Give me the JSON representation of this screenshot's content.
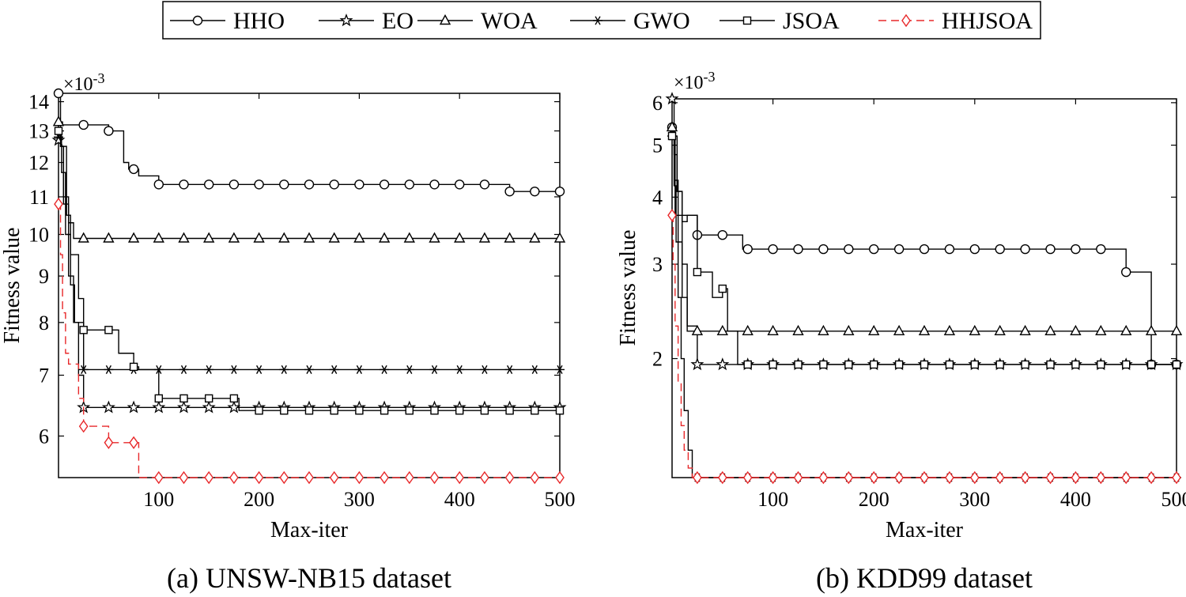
{
  "legend": {
    "placement": "top-center",
    "entries": [
      {
        "label": "HHO",
        "marker": "circle",
        "color": "#000000",
        "dash": "solid"
      },
      {
        "label": "EO",
        "marker": "star",
        "color": "#000000",
        "dash": "solid"
      },
      {
        "label": "WOA",
        "marker": "triangle",
        "color": "#000000",
        "dash": "solid"
      },
      {
        "label": "GWO",
        "marker": "asterisk",
        "color": "#000000",
        "dash": "solid"
      },
      {
        "label": "JSOA",
        "marker": "square",
        "color": "#000000",
        "dash": "solid"
      },
      {
        "label": "HHJSOA",
        "marker": "diamond",
        "color": "#e8282a",
        "dash": "dashed"
      }
    ]
  },
  "chart_data": [
    {
      "type": "line",
      "step": true,
      "yscale": "log",
      "caption": "(a) UNSW-NB15 dataset",
      "xlabel": "Max-iter",
      "ylabel": "Fitness value",
      "exponent": "×10-3",
      "xlim": [
        0,
        500
      ],
      "ylim": [
        5.4,
        14.3
      ],
      "xticks": [
        100,
        200,
        300,
        400,
        500
      ],
      "yticks": [
        6,
        7,
        8,
        9,
        10,
        11,
        12,
        13,
        14
      ],
      "marker_x": [
        0,
        25,
        50,
        75,
        100,
        125,
        150,
        175,
        200,
        225,
        250,
        275,
        300,
        325,
        350,
        375,
        400,
        425,
        450,
        475,
        500
      ],
      "series": [
        {
          "name": "HHO",
          "x": [
            0,
            2,
            4,
            50,
            65,
            70,
            80,
            100,
            450,
            500
          ],
          "y": [
            14.3,
            13.3,
            13.2,
            13.0,
            12.0,
            11.8,
            11.6,
            11.35,
            11.15,
            11.15
          ]
        },
        {
          "name": "EO",
          "x": [
            0,
            2,
            5,
            10,
            15,
            20,
            25,
            500
          ],
          "y": [
            12.7,
            12.5,
            10.8,
            9.0,
            8.0,
            7.0,
            6.45,
            6.45
          ]
        },
        {
          "name": "WOA",
          "x": [
            0,
            2,
            5,
            10,
            15,
            500
          ],
          "y": [
            13.3,
            12.5,
            11.0,
            10.3,
            9.9,
            9.9
          ]
        },
        {
          "name": "GWO",
          "x": [
            0,
            3,
            7,
            12,
            16,
            25,
            500
          ],
          "y": [
            12.8,
            11.7,
            10.0,
            8.8,
            8.0,
            7.1,
            7.1
          ]
        },
        {
          "name": "JSOA",
          "x": [
            0,
            3,
            8,
            12,
            20,
            25,
            60,
            75,
            80,
            100,
            180,
            500
          ],
          "y": [
            13.0,
            12.5,
            10.5,
            9.5,
            8.5,
            7.85,
            7.4,
            7.15,
            7.1,
            6.6,
            6.4,
            6.4
          ]
        },
        {
          "name": "HHJSOA",
          "x": [
            0,
            2,
            4,
            7,
            10,
            20,
            25,
            30,
            50,
            80,
            500
          ],
          "y": [
            10.8,
            9.5,
            8.2,
            7.4,
            7.2,
            6.6,
            6.15,
            6.15,
            5.9,
            5.4,
            5.4
          ]
        }
      ]
    },
    {
      "type": "line",
      "step": true,
      "yscale": "log",
      "caption": "(b) KDD99 dataset",
      "xlabel": "Max-iter",
      "ylabel": "Fitness value",
      "exponent": "×10-3",
      "xlim": [
        0,
        500
      ],
      "ylim": [
        1.2,
        6.1
      ],
      "xticks": [
        100,
        200,
        300,
        400,
        500
      ],
      "yticks": [
        2,
        3,
        4,
        5,
        6
      ],
      "marker_x": [
        0,
        25,
        50,
        75,
        100,
        125,
        150,
        175,
        200,
        225,
        250,
        275,
        300,
        325,
        350,
        375,
        400,
        425,
        450,
        475,
        500
      ],
      "series": [
        {
          "name": "HHO",
          "x": [
            0,
            2,
            5,
            10,
            15,
            25,
            50,
            70,
            425,
            450,
            475,
            500
          ],
          "y": [
            5.4,
            4.8,
            4.1,
            3.6,
            3.7,
            3.4,
            3.4,
            3.2,
            3.2,
            2.9,
            1.95,
            1.95
          ]
        },
        {
          "name": "EO",
          "x": [
            0,
            2,
            5,
            10,
            15,
            25,
            500
          ],
          "y": [
            6.1,
            5.2,
            4.1,
            3.0,
            2.3,
            1.95,
            1.95
          ]
        },
        {
          "name": "WOA",
          "x": [
            0,
            3,
            6,
            10,
            15,
            500
          ],
          "y": [
            5.4,
            4.3,
            3.3,
            2.6,
            2.25,
            2.25
          ]
        },
        {
          "name": "GWO",
          "x": [
            0,
            2,
            4,
            6,
            9,
            12,
            16,
            20,
            500
          ],
          "y": [
            5.2,
            4.2,
            3.3,
            2.6,
            2.0,
            1.6,
            1.35,
            1.2,
            1.2
          ]
        },
        {
          "name": "JSOA",
          "x": [
            0,
            3,
            8,
            15,
            25,
            40,
            50,
            55,
            65,
            500
          ],
          "y": [
            5.2,
            3.7,
            3.7,
            3.7,
            2.9,
            2.6,
            2.7,
            2.25,
            1.95,
            1.95
          ]
        },
        {
          "name": "HHJSOA",
          "x": [
            0,
            1,
            3,
            6,
            9,
            12,
            16,
            20,
            500
          ],
          "y": [
            3.7,
            3.0,
            2.3,
            1.8,
            1.5,
            1.35,
            1.25,
            1.2,
            1.2
          ]
        }
      ]
    }
  ]
}
